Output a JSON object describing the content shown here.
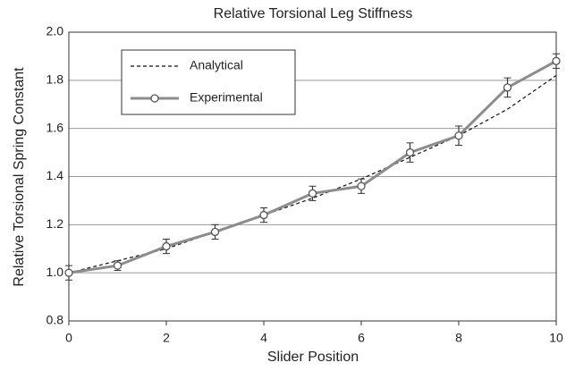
{
  "chart_data": {
    "type": "line",
    "title": "Relative Torsional Leg Stiffness",
    "x_label": "Slider Position",
    "y_label": "Relative Torsional Spring Constant",
    "x": [
      0,
      1,
      2,
      3,
      4,
      5,
      6,
      7,
      8,
      9,
      10
    ],
    "series": [
      {
        "name": "Analytical",
        "color": "#111111",
        "style": "dashed",
        "values": [
          1.0,
          1.05,
          1.1,
          1.17,
          1.24,
          1.31,
          1.39,
          1.48,
          1.57,
          1.68,
          1.82
        ]
      },
      {
        "name": "Experimental",
        "color": "#8c8c8c",
        "style": "solid",
        "marker": "circle",
        "values": [
          1.0,
          1.03,
          1.11,
          1.17,
          1.24,
          1.33,
          1.36,
          1.5,
          1.57,
          1.77,
          1.88
        ],
        "errors": [
          0.03,
          0.02,
          0.03,
          0.03,
          0.03,
          0.03,
          0.03,
          0.04,
          0.04,
          0.04,
          0.03
        ]
      }
    ],
    "xlim": [
      0,
      10
    ],
    "xticks": [
      0,
      2,
      4,
      6,
      8,
      10
    ],
    "ylim": [
      0.8,
      2.0
    ],
    "yticks": [
      0.8,
      {
        "value": 1,
        "label": "1.0"
      },
      1.2,
      1.4,
      1.6,
      1.8,
      {
        "value": 2,
        "label": "2.0"
      }
    ],
    "grid": true,
    "legend": "upper left"
  }
}
